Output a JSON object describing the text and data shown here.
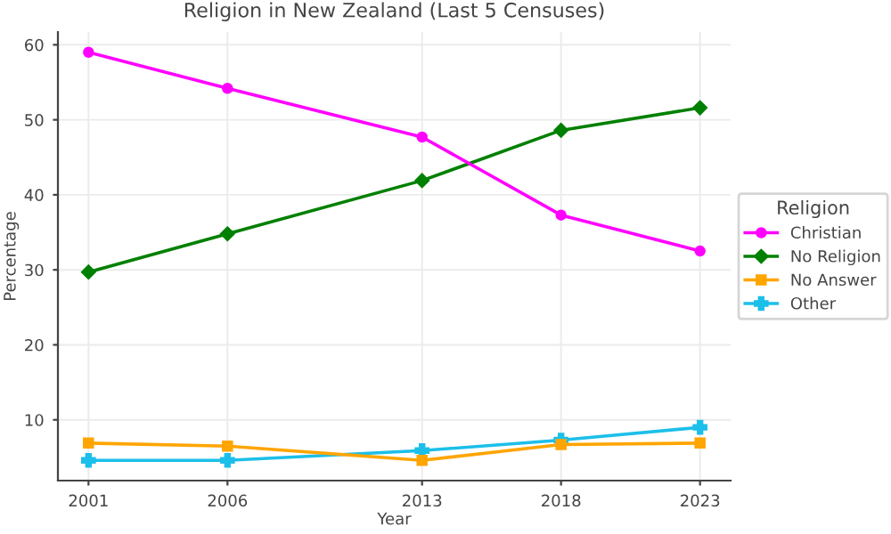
{
  "chart_data": {
    "type": "line",
    "title": "Religion in New Zealand (Last 5 Censuses)",
    "xlabel": "Year",
    "ylabel": "Percentage",
    "legend_title": "Religion",
    "x": [
      2001,
      2006,
      2013,
      2018,
      2023
    ],
    "series": [
      {
        "name": "Christian",
        "color": "#ff00ff",
        "marker": "circle",
        "values": [
          59.0,
          54.2,
          47.7,
          37.3,
          32.5
        ]
      },
      {
        "name": "No Religion",
        "color": "#008000",
        "marker": "diamond",
        "values": [
          29.7,
          34.8,
          41.9,
          48.6,
          51.6
        ]
      },
      {
        "name": "No Answer",
        "color": "#ffa500",
        "marker": "square",
        "values": [
          6.9,
          6.5,
          4.6,
          6.7,
          6.9
        ]
      },
      {
        "name": "Other",
        "color": "#1cbfea",
        "marker": "cross",
        "values": [
          4.6,
          4.6,
          5.9,
          7.3,
          9.0
        ]
      }
    ],
    "xlim": [
      1999.9,
      2024.1
    ],
    "xticks": [
      2001,
      2006,
      2013,
      2018,
      2023
    ],
    "ylim": [
      1.9,
      61.7
    ],
    "yticks": [
      10,
      20,
      30,
      40,
      50,
      60
    ],
    "grid": true,
    "legend": "right",
    "line_style": "solid"
  }
}
